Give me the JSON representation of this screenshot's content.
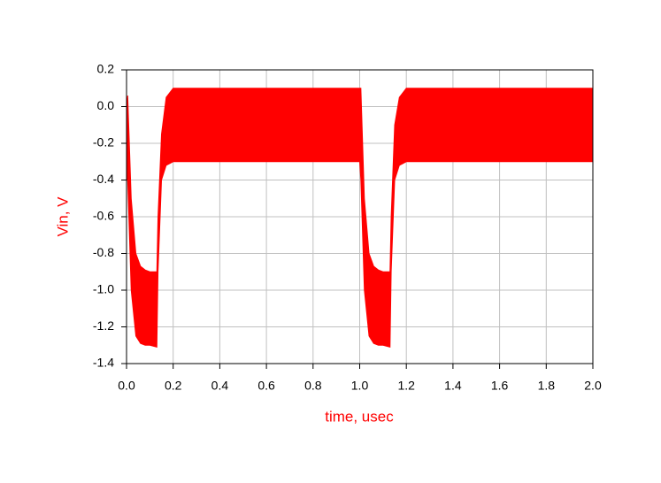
{
  "chart_data": {
    "type": "band",
    "x_label": "time, usec",
    "y_label": "Vin, V",
    "x": [
      0,
      0.005,
      0.02,
      0.04,
      0.06,
      0.08,
      0.1,
      0.13,
      0.135,
      0.15,
      0.17,
      0.2,
      1.0,
      1.005,
      1.02,
      1.04,
      1.06,
      1.08,
      1.1,
      1.13,
      1.135,
      1.15,
      1.17,
      1.2,
      2.0
    ],
    "series": [
      {
        "color": "#ff0000",
        "values": [
          0,
          0.06,
          -0.5,
          -0.8,
          -0.87,
          -0.89,
          -0.9,
          -0.9,
          -0.6,
          -0.15,
          0.05,
          0.1,
          0.1,
          0.1,
          -0.5,
          -0.8,
          -0.87,
          -0.89,
          -0.9,
          -0.9,
          -0.6,
          -0.1,
          0.05,
          0.1,
          0.1
        ]
      },
      {
        "color": "#ff0000",
        "values": [
          -0.4,
          -0.4,
          -1.0,
          -1.25,
          -1.29,
          -1.3,
          -1.3,
          -1.31,
          -0.9,
          -0.4,
          -0.32,
          -0.3,
          -0.3,
          -0.4,
          -1.0,
          -1.25,
          -1.29,
          -1.3,
          -1.3,
          -1.31,
          -0.9,
          -0.4,
          -0.32,
          -0.3,
          -0.3
        ]
      }
    ],
    "xlim": [
      0,
      2
    ],
    "ylim": [
      -1.4,
      0.2
    ],
    "xticks": [
      {
        "value": 0,
        "label": "0.0"
      },
      0.2,
      0.4,
      0.6,
      0.8,
      {
        "value": 1,
        "label": "1.0"
      },
      1.2,
      1.4,
      1.6,
      1.8,
      {
        "value": 2,
        "label": "2.0"
      }
    ],
    "yticks": [
      -1.4,
      -1.2,
      {
        "value": -1,
        "label": "-1.0"
      },
      -0.8,
      -0.6,
      -0.4,
      -0.2,
      {
        "value": 0,
        "label": "0.0"
      },
      0.2
    ],
    "grid": true
  }
}
